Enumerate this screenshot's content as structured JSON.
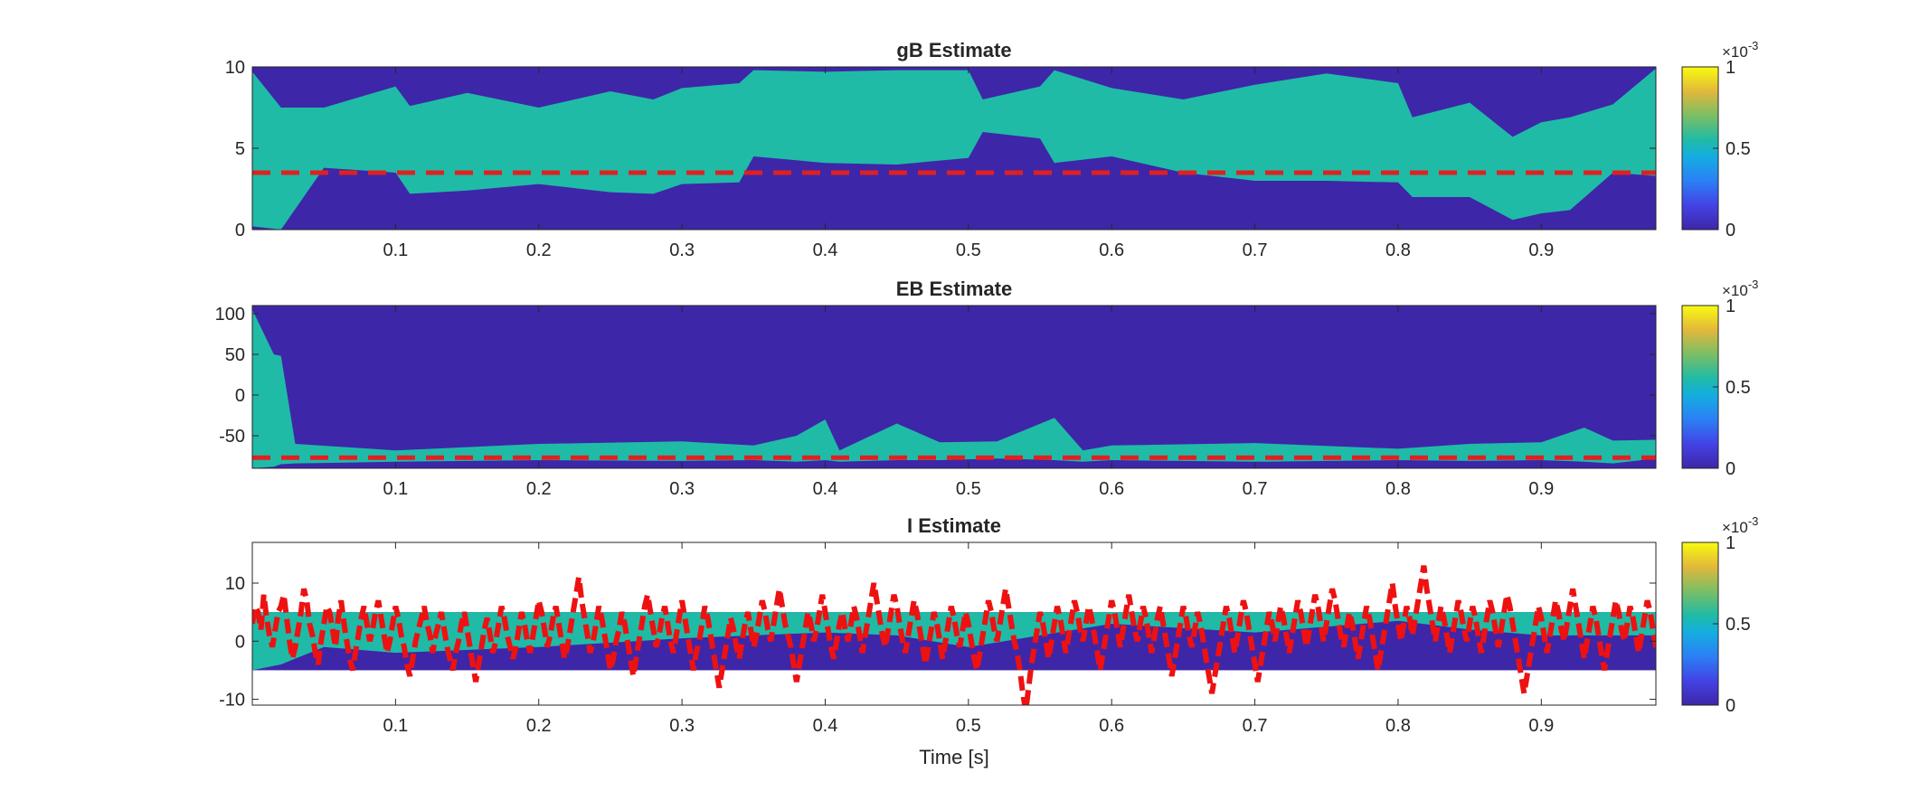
{
  "chart_data": [
    {
      "type": "heatmap",
      "title": "gB Estimate",
      "xlim": [
        0.0,
        0.98
      ],
      "ylim": [
        0,
        10
      ],
      "xticks": [
        0.1,
        0.2,
        0.3,
        0.4,
        0.5,
        0.6,
        0.7,
        0.8,
        0.9
      ],
      "xtick_labels": [
        "0.1",
        "0.2",
        "0.3",
        "0.4",
        "0.5",
        "0.6",
        "0.7",
        "0.8",
        "0.9"
      ],
      "yticks": [
        0,
        5,
        10
      ],
      "ytick_labels": [
        "0",
        "5",
        "10"
      ],
      "colorbar": {
        "ticks": [
          0,
          0.5,
          1
        ],
        "tick_labels": [
          "0",
          "0.5",
          "1"
        ],
        "exponent": "×10^-3",
        "exponent_base": "×10",
        "exponent_power": "-3"
      },
      "background_color": "#3e26a8",
      "band_color": "#1fbba7",
      "band_x": [
        0.0,
        0.02,
        0.05,
        0.1,
        0.11,
        0.15,
        0.2,
        0.25,
        0.28,
        0.3,
        0.34,
        0.35,
        0.4,
        0.45,
        0.5,
        0.51,
        0.55,
        0.56,
        0.6,
        0.65,
        0.7,
        0.75,
        0.8,
        0.81,
        0.85,
        0.88,
        0.9,
        0.92,
        0.95,
        0.98
      ],
      "band_low": [
        0.2,
        0.0,
        3.8,
        3.5,
        2.2,
        2.4,
        2.8,
        2.3,
        2.2,
        2.8,
        2.9,
        4.5,
        4.1,
        4.0,
        4.4,
        6.0,
        5.6,
        4.1,
        4.5,
        3.5,
        3.0,
        3.0,
        2.9,
        2.0,
        2.0,
        0.6,
        1.0,
        1.2,
        3.5,
        3.3
      ],
      "band_high": [
        9.7,
        7.5,
        7.5,
        8.8,
        7.6,
        8.4,
        7.5,
        8.5,
        8.0,
        8.7,
        9.0,
        9.8,
        9.7,
        9.8,
        9.8,
        8.0,
        8.8,
        9.8,
        8.7,
        8.0,
        8.9,
        9.6,
        9.0,
        6.9,
        7.8,
        5.7,
        6.6,
        6.9,
        7.7,
        9.9
      ],
      "reference_line": {
        "y": 3.5,
        "color": "#e02020",
        "style": "dashed"
      }
    },
    {
      "type": "heatmap",
      "title": "EB Estimate",
      "xlim": [
        0.0,
        0.98
      ],
      "ylim": [
        -90,
        110
      ],
      "xticks": [
        0.1,
        0.2,
        0.3,
        0.4,
        0.5,
        0.6,
        0.7,
        0.8,
        0.9
      ],
      "xtick_labels": [
        "0.1",
        "0.2",
        "0.3",
        "0.4",
        "0.5",
        "0.6",
        "0.7",
        "0.8",
        "0.9"
      ],
      "yticks": [
        -50,
        0,
        50,
        100
      ],
      "ytick_labels": [
        "-50",
        "0",
        "50",
        "100"
      ],
      "colorbar": {
        "ticks": [
          0,
          0.5,
          1
        ],
        "tick_labels": [
          "0",
          "0.5",
          "1"
        ],
        "exponent": "×10^-3",
        "exponent_base": "×10",
        "exponent_power": "-3"
      },
      "background_color": "#3e26a8",
      "band_color": "#1fbba7",
      "band_x": [
        0.0,
        0.015,
        0.02,
        0.03,
        0.1,
        0.2,
        0.3,
        0.35,
        0.38,
        0.4,
        0.41,
        0.45,
        0.48,
        0.52,
        0.56,
        0.58,
        0.6,
        0.7,
        0.8,
        0.85,
        0.9,
        0.93,
        0.95,
        0.98
      ],
      "band_low": [
        -90,
        -88,
        -85,
        -84,
        -82,
        -80,
        -81,
        -80,
        -82,
        -80,
        -82,
        -80,
        -80,
        -78,
        -80,
        -82,
        -80,
        -82,
        -80,
        -81,
        -80,
        -82,
        -84,
        -78
      ],
      "band_high": [
        105,
        50,
        48,
        -60,
        -68,
        -60,
        -57,
        -62,
        -50,
        -30,
        -68,
        -35,
        -58,
        -57,
        -28,
        -68,
        -62,
        -59,
        -66,
        -60,
        -58,
        -40,
        -56,
        -55
      ],
      "reference_line": {
        "y": -77,
        "color": "#e02020",
        "style": "dashed"
      }
    },
    {
      "type": "heatmap",
      "title": "I Estimate",
      "xlabel": "Time [s]",
      "xlim": [
        0.0,
        0.98
      ],
      "ylim": [
        -11,
        17
      ],
      "xticks": [
        0.1,
        0.2,
        0.3,
        0.4,
        0.5,
        0.6,
        0.7,
        0.8,
        0.9
      ],
      "xtick_labels": [
        "0.1",
        "0.2",
        "0.3",
        "0.4",
        "0.5",
        "0.6",
        "0.7",
        "0.8",
        "0.9"
      ],
      "yticks": [
        -10,
        0,
        10
      ],
      "ytick_labels": [
        "-10",
        "0",
        "10"
      ],
      "colorbar": {
        "ticks": [
          0,
          0.5,
          1
        ],
        "tick_labels": [
          "0",
          "0.5",
          "1"
        ],
        "exponent": "×10^-3",
        "exponent_base": "×10",
        "exponent_power": "-3"
      },
      "background_color": "#3e26a8",
      "band_color": "#1fbba7",
      "support_range": [
        -5,
        5
      ],
      "band_x": [
        0.0,
        0.02,
        0.05,
        0.1,
        0.2,
        0.3,
        0.4,
        0.45,
        0.5,
        0.55,
        0.6,
        0.7,
        0.8,
        0.85,
        0.9,
        0.95,
        0.98
      ],
      "band_low": [
        -5,
        -4,
        -1,
        -2,
        -1,
        0.5,
        1.5,
        1,
        -1,
        1,
        3,
        1.5,
        3.5,
        2,
        1,
        1,
        1
      ],
      "band_high": [
        5,
        5,
        5,
        5,
        5,
        5,
        5,
        5,
        5,
        5,
        5,
        5,
        5,
        5,
        5,
        5,
        5
      ],
      "reference_signal": {
        "color": "#ee1111",
        "style": "dashed",
        "x_start": 0.0,
        "x_step": 0.002,
        "y": [
          3,
          6,
          5,
          2,
          8,
          4,
          1,
          -1,
          2,
          5,
          6,
          8,
          4,
          0,
          -3,
          -1,
          2,
          5,
          9,
          7,
          3,
          1,
          -2,
          -4,
          0,
          3,
          6,
          5,
          2,
          -1,
          4,
          7,
          3,
          0,
          -3,
          -5,
          -2,
          1,
          4,
          6,
          3,
          0,
          2,
          5,
          7,
          4,
          1,
          -2,
          0,
          3,
          6,
          4,
          1,
          -1,
          -4,
          -6,
          -3,
          0,
          2,
          4,
          6,
          3,
          1,
          -2,
          1,
          3,
          5,
          2,
          -1,
          -3,
          -5,
          -2,
          0,
          3,
          5,
          2,
          -1,
          -4,
          -7,
          -4,
          -1,
          2,
          4,
          1,
          -2,
          0,
          3,
          6,
          4,
          1,
          -1,
          -3,
          -1,
          2,
          5,
          3,
          0,
          -2,
          1,
          4,
          7,
          5,
          2,
          -1,
          1,
          4,
          6,
          3,
          0,
          -3,
          -1,
          2,
          5,
          8,
          11,
          7,
          4,
          1,
          -2,
          0,
          3,
          6,
          4,
          1,
          -2,
          -5,
          -3,
          0,
          2,
          5,
          3,
          0,
          -3,
          -6,
          -3,
          0,
          3,
          6,
          8,
          5,
          2,
          -1,
          1,
          4,
          6,
          3,
          0,
          -2,
          1,
          4,
          7,
          4,
          1,
          -2,
          -5,
          -2,
          0,
          3,
          6,
          4,
          1,
          -2,
          -5,
          -8,
          -5,
          -2,
          1,
          4,
          2,
          -1,
          -3,
          0,
          3,
          5,
          2,
          -1,
          1,
          4,
          7,
          5,
          2,
          0,
          3,
          6,
          9,
          6,
          3,
          1,
          -1,
          -4,
          -7,
          -4,
          -1,
          2,
          5,
          3,
          0,
          2,
          5,
          8,
          5,
          2,
          -1,
          -3,
          0,
          3,
          5,
          2,
          0,
          3,
          6,
          4,
          1,
          -2,
          1,
          4,
          7,
          10,
          7,
          4,
          1,
          -1,
          2,
          5,
          8,
          6,
          3,
          0,
          -2,
          1,
          4,
          7,
          5,
          2,
          -1,
          -4,
          -1,
          2,
          5,
          3,
          0,
          -3,
          0,
          3,
          6,
          4,
          1,
          -1,
          2,
          5,
          3,
          0,
          -3,
          -5,
          -2,
          1,
          4,
          7,
          5,
          2,
          0,
          3,
          6,
          9,
          6,
          3,
          0,
          -2,
          -5,
          -9,
          -12,
          -8,
          -4,
          -1,
          2,
          5,
          3,
          0,
          -3,
          0,
          3,
          6,
          4,
          1,
          -2,
          1,
          4,
          7,
          5,
          2,
          0,
          3,
          6,
          4,
          1,
          -2,
          -5,
          -2,
          1,
          4,
          7,
          5,
          2,
          -1,
          2,
          5,
          8,
          5,
          2,
          0,
          3,
          6,
          4,
          1,
          -2,
          1,
          4,
          6,
          3,
          0,
          -3,
          -6,
          -3,
          0,
          3,
          6,
          4,
          1,
          -1,
          2,
          5,
          3,
          0,
          -3,
          -6,
          -9,
          -6,
          -3,
          0,
          3,
          6,
          4,
          1,
          -2,
          1,
          4,
          7,
          5,
          2,
          -1,
          -4,
          -7,
          -4,
          -1,
          2,
          5,
          3,
          0,
          3,
          6,
          4,
          1,
          -2,
          1,
          4,
          7,
          5,
          2,
          -1,
          2,
          5,
          8,
          6,
          3,
          0,
          3,
          6,
          9,
          7,
          4,
          1,
          -1,
          2,
          5,
          3,
          0,
          -3,
          0,
          3,
          6,
          4,
          1,
          -2,
          -5,
          -2,
          1,
          4,
          7,
          10,
          6,
          3,
          0,
          3,
          6,
          4,
          1,
          4,
          7,
          10,
          13,
          9,
          6,
          3,
          0,
          3,
          6,
          4,
          1,
          -2,
          1,
          4,
          7,
          5,
          2,
          0,
          3,
          6,
          4,
          1,
          -2,
          1,
          4,
          7,
          5,
          2,
          -1,
          2,
          5,
          8,
          6,
          3,
          0,
          -3,
          -6,
          -9,
          -6,
          -3,
          0,
          3,
          6,
          4,
          1,
          -2,
          1,
          4,
          7,
          5,
          2,
          0,
          3,
          6,
          9,
          6,
          3,
          0,
          -3,
          0,
          3,
          6,
          4,
          1,
          -2,
          -5,
          -2,
          1,
          4,
          7,
          5,
          2,
          0,
          3,
          6,
          4,
          1,
          -2,
          1,
          4,
          7,
          5,
          2,
          -1,
          2,
          5,
          8,
          6,
          3,
          0,
          -3,
          -6,
          -3,
          0,
          3,
          6,
          4,
          1,
          -2,
          1,
          4,
          7,
          5,
          2,
          -1,
          -4,
          -1,
          2,
          5,
          3,
          0,
          3,
          6,
          4,
          1,
          -2,
          -5,
          -2,
          1,
          4,
          7,
          5,
          2,
          -1,
          -4,
          -7,
          -10,
          -6,
          -2,
          1,
          4,
          7,
          5,
          2,
          0,
          3,
          6,
          9,
          7,
          4,
          1,
          -1,
          2,
          5,
          8,
          12,
          16,
          11,
          7,
          4,
          1,
          -2,
          1,
          4,
          7,
          5,
          2,
          0,
          3,
          6,
          4,
          1,
          -2,
          1,
          4,
          7,
          10,
          7,
          4,
          1,
          -1,
          2,
          5,
          3,
          0,
          -3,
          -5,
          -2,
          1,
          4,
          7,
          5,
          2,
          0,
          3,
          6,
          4,
          1,
          -2,
          1,
          4,
          7,
          5,
          2,
          -1,
          2,
          5,
          3,
          0,
          -3,
          -6,
          -3,
          0,
          3,
          6,
          4,
          1,
          -1,
          2,
          5,
          7,
          4,
          1,
          -2,
          1,
          4,
          7
        ]
      }
    }
  ]
}
